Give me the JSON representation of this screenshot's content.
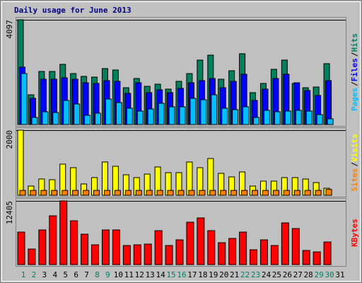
{
  "chart_data": [
    {
      "type": "bar",
      "title": "Daily usage for June 2013",
      "ylim": [
        0,
        4097
      ],
      "yticks": [
        4097
      ],
      "separator": "/",
      "series": [
        {
          "name": "Hits",
          "color": "#00805c",
          "values": [
            4097,
            1163,
            2077,
            2077,
            2355,
            1994,
            1884,
            1856,
            2189,
            2133,
            1440,
            1801,
            1496,
            1579,
            1385,
            1690,
            1994,
            2521,
            2715,
            1773,
            2105,
            2770,
            1247,
            1607,
            2161,
            2521,
            1607,
            1440,
            1468,
            2382,
            null
          ]
        },
        {
          "name": "Files",
          "color": "#0000ff",
          "values": [
            2244,
            1025,
            1773,
            1773,
            1828,
            1773,
            1634,
            1607,
            1717,
            1690,
            1219,
            1634,
            1247,
            1357,
            1247,
            1413,
            1634,
            1717,
            1801,
            1440,
            1690,
            1967,
            942,
            1385,
            1801,
            1967,
            1634,
            1330,
            1136,
            1717,
            null
          ]
        },
        {
          "name": "Pages",
          "color": "#00c0ff",
          "values": [
            1994,
            277,
            499,
            471,
            942,
            803,
            360,
            443,
            997,
            859,
            637,
            526,
            609,
            831,
            693,
            693,
            1025,
            970,
            1163,
            637,
            582,
            693,
            277,
            554,
            499,
            526,
            554,
            526,
            388,
            222,
            null
          ]
        }
      ]
    },
    {
      "type": "bar",
      "ylim": [
        0,
        2000
      ],
      "yticks": [
        2000
      ],
      "separator": "/",
      "series": [
        {
          "name": "Visits",
          "color": "#ffff00",
          "values": [
            2000,
            283,
            500,
            478,
            957,
            848,
            348,
            543,
            1022,
            891,
            630,
            543,
            652,
            870,
            696,
            696,
            1022,
            848,
            1130,
            674,
            565,
            717,
            283,
            435,
            435,
            543,
            543,
            500,
            391,
            217,
            null
          ]
        },
        {
          "name": "Sites",
          "color": "#ff8000",
          "values": [
            150,
            150,
            150,
            150,
            150,
            150,
            150,
            150,
            150,
            150,
            150,
            150,
            150,
            150,
            150,
            150,
            150,
            150,
            150,
            150,
            150,
            150,
            150,
            150,
            150,
            150,
            150,
            150,
            150,
            180,
            null
          ]
        }
      ]
    },
    {
      "type": "bar",
      "ylim": [
        0,
        12405
      ],
      "yticks": [
        12405
      ],
      "series": [
        {
          "name": "KBytes",
          "color": "#ff0000",
          "values": [
            6340,
            3032,
            6753,
            9510,
            12405,
            8544,
            5926,
            3859,
            6753,
            6753,
            3721,
            3859,
            3997,
            6615,
            3721,
            4824,
            8268,
            9096,
            6615,
            4272,
            5099,
            6340,
            2894,
            4824,
            3721,
            8130,
            7029,
            2756,
            2480,
            4410,
            null
          ]
        }
      ],
      "categories": [
        "1",
        "2",
        "3",
        "4",
        "5",
        "6",
        "7",
        "8",
        "9",
        "10",
        "11",
        "12",
        "13",
        "14",
        "15",
        "16",
        "17",
        "18",
        "19",
        "20",
        "21",
        "22",
        "23",
        "24",
        "25",
        "26",
        "27",
        "28",
        "29",
        "30",
        "31"
      ],
      "category_colors": [
        "#00805c",
        "#00805c",
        "#000000",
        "#000000",
        "#000000",
        "#000000",
        "#000000",
        "#00805c",
        "#00805c",
        "#000000",
        "#000000",
        "#000000",
        "#000000",
        "#000000",
        "#00805c",
        "#00805c",
        "#000000",
        "#000000",
        "#000000",
        "#000000",
        "#000000",
        "#00805c",
        "#00805c",
        "#000000",
        "#000000",
        "#000000",
        "#000000",
        "#000000",
        "#00805c",
        "#00805c",
        "#000000"
      ]
    }
  ]
}
